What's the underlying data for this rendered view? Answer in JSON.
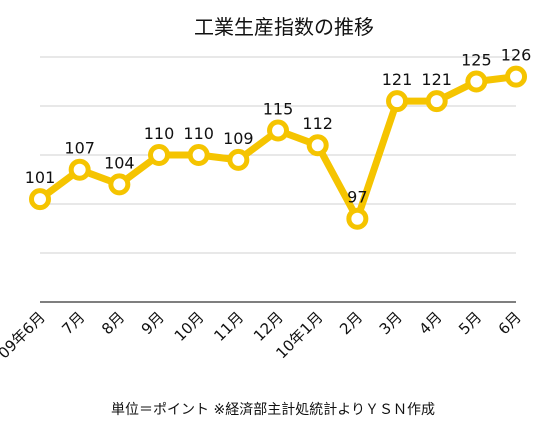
{
  "chart_data": {
    "type": "line",
    "title": "工業生産指数の推移",
    "categories": [
      "09年6月",
      "7月",
      "8月",
      "9月",
      "10月",
      "11月",
      "12月",
      "10年1月",
      "2月",
      "3月",
      "4月",
      "5月",
      "6月"
    ],
    "series": [
      {
        "values": [
          101,
          107,
          104,
          110,
          110,
          109,
          115,
          112,
          97,
          121,
          121,
          125,
          126
        ]
      }
    ],
    "ylim": [
      80,
      130
    ],
    "grid": true,
    "legend": "none",
    "footnote": "単位＝ポイント ※経済部主計処統計よりＹＳＮ作成",
    "colors": {
      "line": "#F5C400",
      "marker_fill": "#ffffff"
    }
  }
}
